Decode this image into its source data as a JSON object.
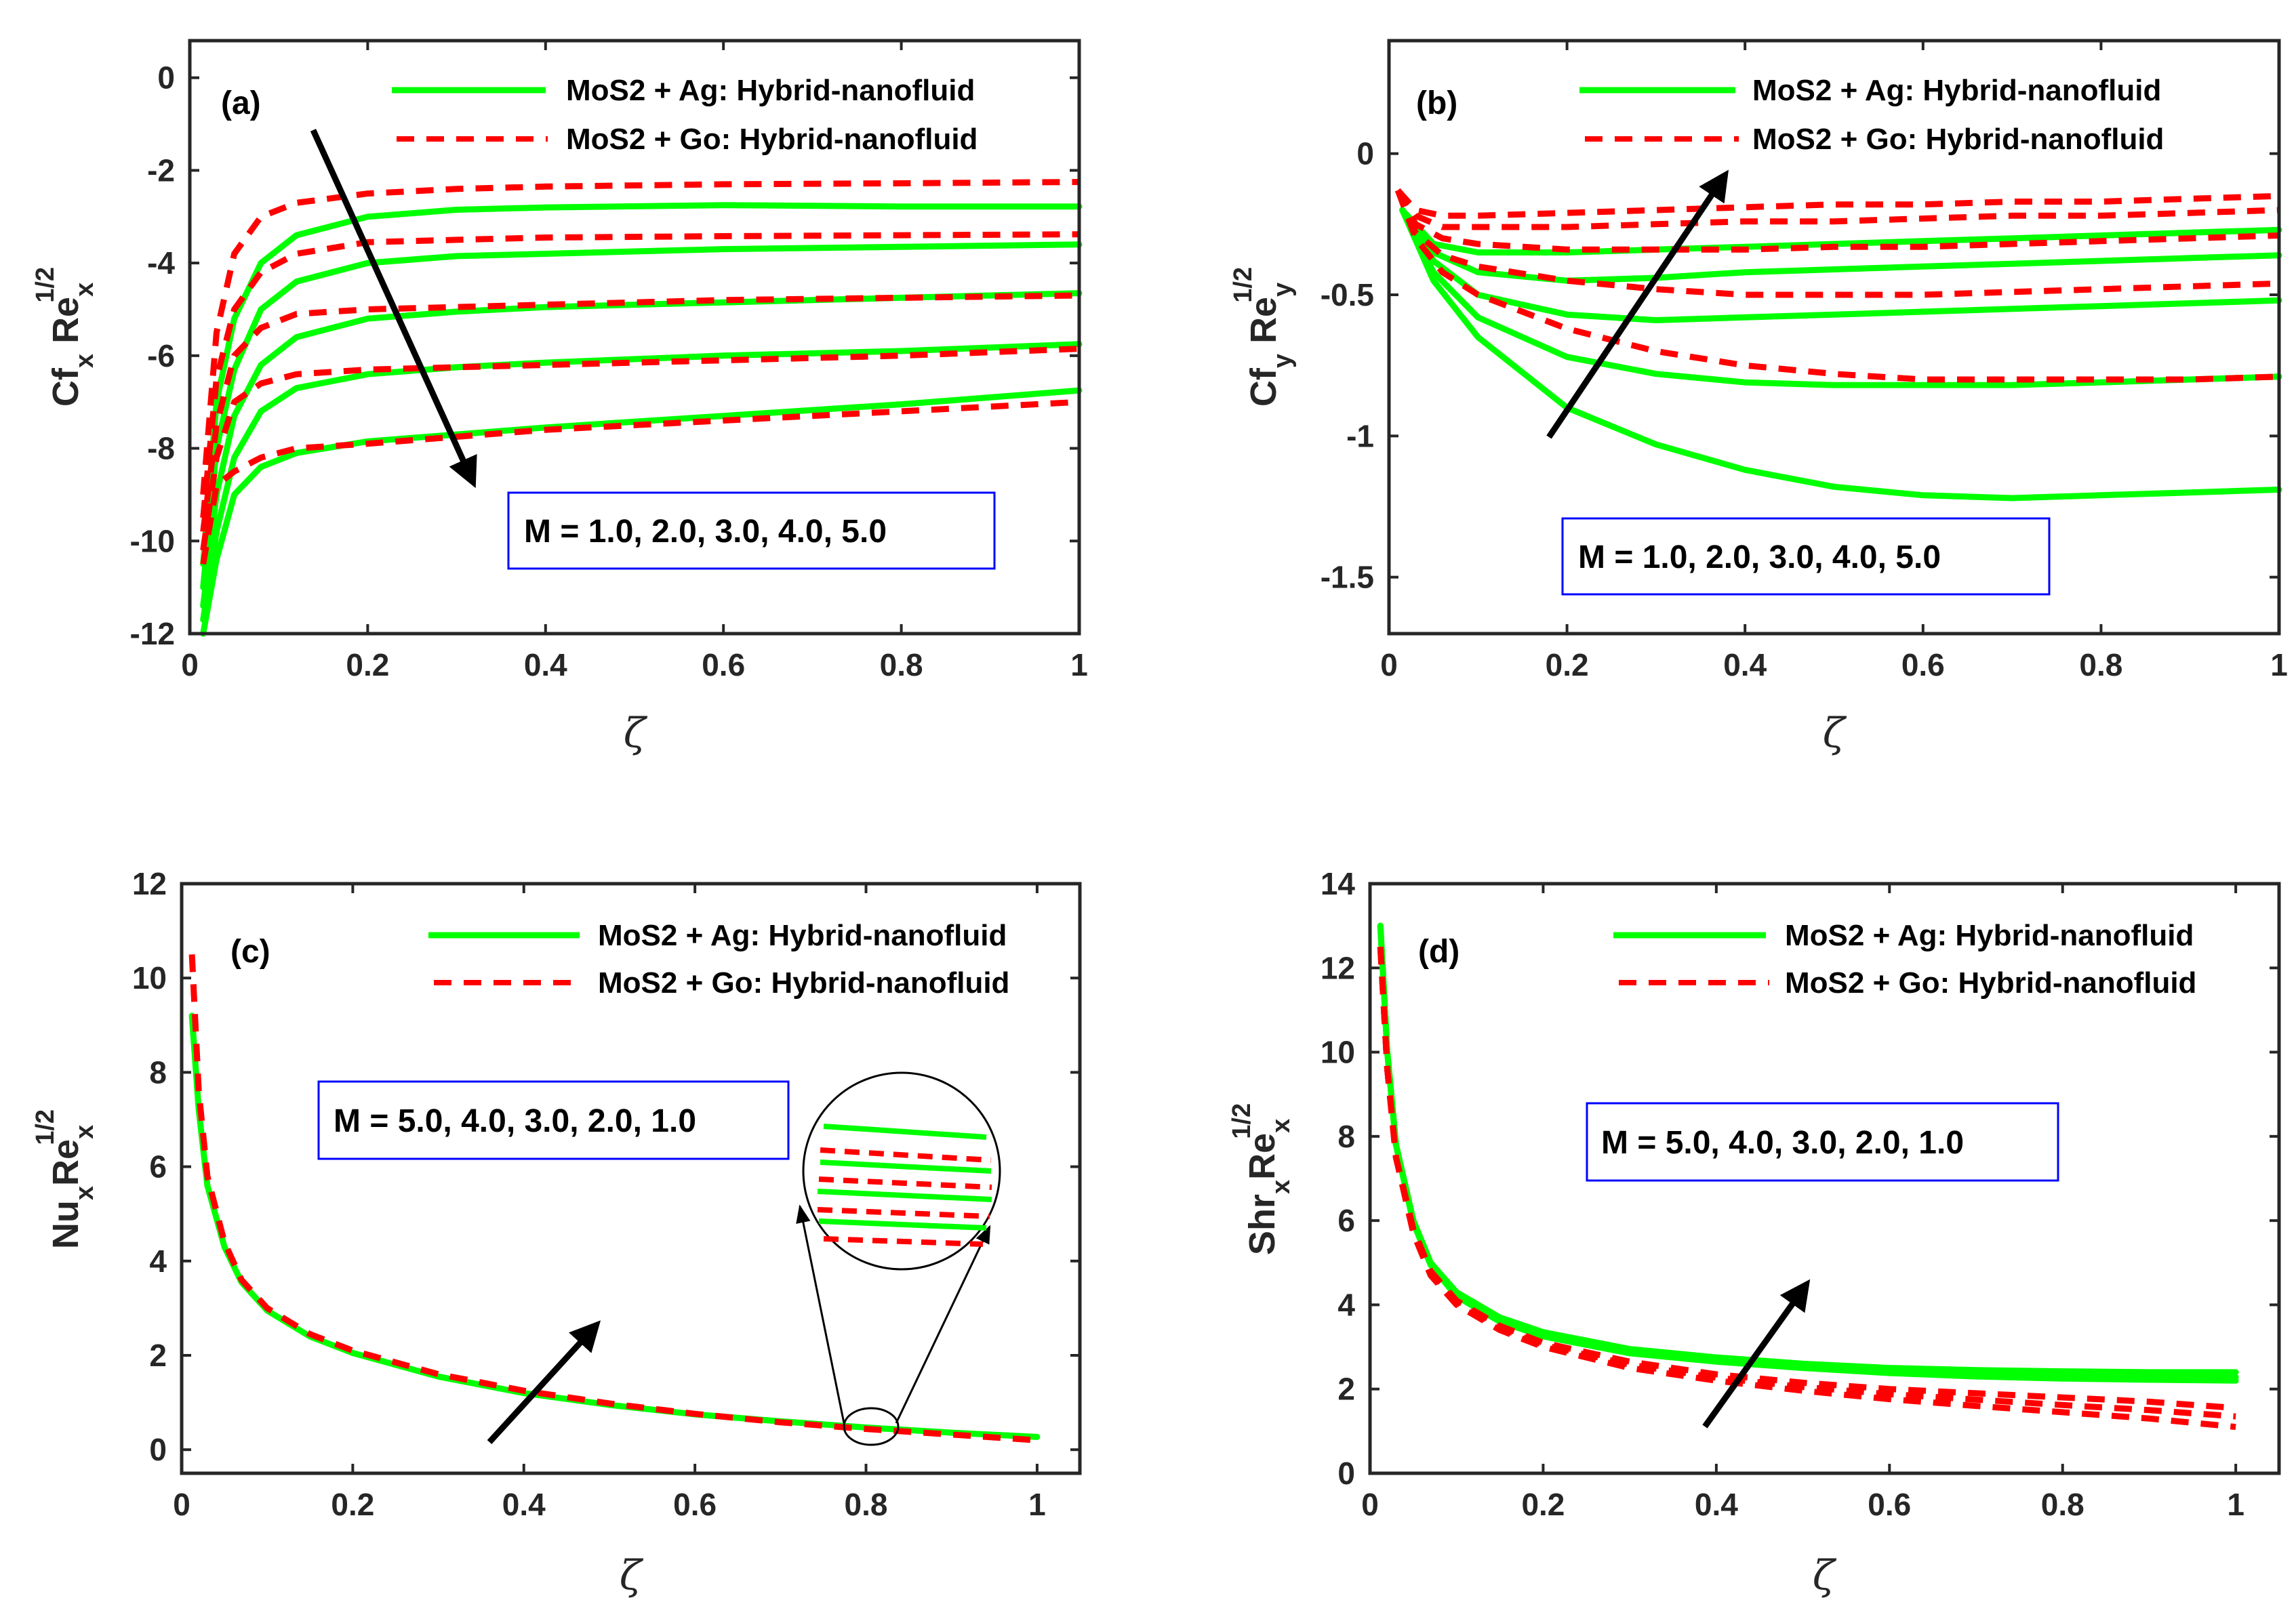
{
  "colors": {
    "ag": "#00ff00",
    "go": "#ff0000",
    "box": "#0000ff",
    "axis": "#262626"
  },
  "chart_data": [
    {
      "id": "a",
      "type": "line",
      "panel_label": "(a)",
      "xlabel": "ζ",
      "ylabel_main": "Cf",
      "ylabel_sub1": "x",
      "ylabel_mid": " Re",
      "ylabel_sub2": "x",
      "ylabel_sup": "1/2",
      "xlim": [
        0,
        1
      ],
      "ylim": [
        -12,
        0.8
      ],
      "xticks": [
        0,
        0.2,
        0.4,
        0.6,
        0.8,
        1
      ],
      "xtick_labels": [
        "0",
        "0.2",
        "0.4",
        "0.6",
        "0.8",
        "1"
      ],
      "yticks": [
        0,
        -2,
        -4,
        -6,
        -8,
        -10,
        -12
      ],
      "ytick_labels": [
        "0",
        "-2",
        "-4",
        "-6",
        "-8",
        "-10",
        "-12"
      ],
      "legend": [
        "MoS2 + Ag: Hybrid-nanofluid",
        "MoS2 + Go: Hybrid-nanofluid"
      ],
      "annotation": "M = 1.0, 2.0, 3.0, 4.0, 5.0",
      "series": [
        {
          "name": "MoS2 + Ag: Hybrid-nanofluid",
          "style": "solid",
          "x": [
            0.015,
            0.03,
            0.05,
            0.08,
            0.12,
            0.2,
            0.3,
            0.4,
            0.6,
            0.8,
            1.0
          ],
          "curves": [
            [
              -10.5,
              -7.0,
              -5.2,
              -4.0,
              -3.4,
              -3.0,
              -2.85,
              -2.8,
              -2.75,
              -2.78,
              -2.78
            ],
            [
              -11.0,
              -8.0,
              -6.3,
              -5.0,
              -4.4,
              -4.0,
              -3.85,
              -3.8,
              -3.7,
              -3.65,
              -3.6
            ],
            [
              -11.4,
              -9.0,
              -7.3,
              -6.2,
              -5.6,
              -5.2,
              -5.05,
              -4.95,
              -4.85,
              -4.75,
              -4.65
            ],
            [
              -11.7,
              -9.8,
              -8.2,
              -7.2,
              -6.7,
              -6.4,
              -6.25,
              -6.15,
              -6.0,
              -5.9,
              -5.75
            ],
            [
              -12.0,
              -10.4,
              -9.0,
              -8.4,
              -8.1,
              -7.85,
              -7.7,
              -7.55,
              -7.3,
              -7.05,
              -6.75
            ]
          ]
        },
        {
          "name": "MoS2 + Go: Hybrid-nanofluid",
          "style": "dashed",
          "x": [
            0.015,
            0.03,
            0.05,
            0.08,
            0.12,
            0.2,
            0.3,
            0.4,
            0.6,
            0.8,
            1.0
          ],
          "curves": [
            [
              -9.0,
              -5.5,
              -3.8,
              -3.0,
              -2.7,
              -2.5,
              -2.4,
              -2.35,
              -2.3,
              -2.28,
              -2.25
            ],
            [
              -9.5,
              -6.5,
              -5.0,
              -4.2,
              -3.8,
              -3.55,
              -3.5,
              -3.45,
              -3.42,
              -3.4,
              -3.38
            ],
            [
              -9.8,
              -7.5,
              -6.0,
              -5.4,
              -5.1,
              -5.0,
              -4.95,
              -4.9,
              -4.8,
              -4.75,
              -4.7
            ],
            [
              -10.2,
              -8.2,
              -7.0,
              -6.6,
              -6.4,
              -6.3,
              -6.25,
              -6.2,
              -6.1,
              -6.0,
              -5.85
            ],
            [
              -10.5,
              -8.8,
              -8.5,
              -8.2,
              -8.0,
              -7.9,
              -7.75,
              -7.6,
              -7.4,
              -7.2,
              -7.0
            ]
          ]
        }
      ]
    },
    {
      "id": "b",
      "type": "line",
      "panel_label": "(b)",
      "xlabel": "ζ",
      "ylabel_main": "Cf",
      "ylabel_sub1": "y",
      "ylabel_mid": " Re",
      "ylabel_sub2": "y",
      "ylabel_sup": "1/2",
      "xlim": [
        0,
        1
      ],
      "ylim": [
        -1.7,
        0.4
      ],
      "xticks": [
        0,
        0.2,
        0.4,
        0.6,
        0.8,
        1
      ],
      "xtick_labels": [
        "0",
        "0.2",
        "0.4",
        "0.6",
        "0.8",
        "1"
      ],
      "yticks": [
        0,
        -0.5,
        -1,
        -1.5
      ],
      "ytick_labels": [
        "0",
        "-0.5",
        "-1",
        "-1.5"
      ],
      "legend": [
        "MoS2 + Ag: Hybrid-nanofluid",
        "MoS2 + Go: Hybrid-nanofluid"
      ],
      "annotation": "M = 1.0, 2.0, 3.0, 4.0, 5.0",
      "series": [
        {
          "name": "MoS2 + Ag: Hybrid-nanofluid",
          "style": "solid",
          "x": [
            0.015,
            0.05,
            0.1,
            0.2,
            0.3,
            0.4,
            0.5,
            0.6,
            0.7,
            0.8,
            0.9,
            1.0
          ],
          "curves": [
            [
              -0.2,
              -0.32,
              -0.35,
              -0.35,
              -0.34,
              -0.33,
              -0.32,
              -0.31,
              -0.3,
              -0.29,
              -0.28,
              -0.27
            ],
            [
              -0.2,
              -0.35,
              -0.42,
              -0.45,
              -0.44,
              -0.42,
              -0.41,
              -0.4,
              -0.39,
              -0.38,
              -0.37,
              -0.36
            ],
            [
              -0.2,
              -0.38,
              -0.5,
              -0.57,
              -0.59,
              -0.58,
              -0.57,
              -0.56,
              -0.55,
              -0.54,
              -0.53,
              -0.52
            ],
            [
              -0.2,
              -0.42,
              -0.58,
              -0.72,
              -0.78,
              -0.81,
              -0.82,
              -0.82,
              -0.82,
              -0.81,
              -0.8,
              -0.79
            ],
            [
              -0.2,
              -0.45,
              -0.65,
              -0.9,
              -1.03,
              -1.12,
              -1.18,
              -1.21,
              -1.22,
              -1.21,
              -1.2,
              -1.19
            ]
          ]
        },
        {
          "name": "MoS2 + Go: Hybrid-nanofluid",
          "style": "dashed",
          "x": [
            0.01,
            0.03,
            0.06,
            0.1,
            0.2,
            0.3,
            0.4,
            0.5,
            0.6,
            0.7,
            0.8,
            0.9,
            1.0
          ],
          "curves": [
            [
              -0.13,
              -0.2,
              -0.22,
              -0.22,
              -0.21,
              -0.2,
              -0.19,
              -0.18,
              -0.18,
              -0.17,
              -0.17,
              -0.16,
              -0.15
            ],
            [
              -0.13,
              -0.22,
              -0.26,
              -0.26,
              -0.26,
              -0.25,
              -0.24,
              -0.24,
              -0.23,
              -0.22,
              -0.22,
              -0.21,
              -0.2
            ],
            [
              -0.13,
              -0.25,
              -0.3,
              -0.32,
              -0.34,
              -0.34,
              -0.34,
              -0.33,
              -0.33,
              -0.32,
              -0.31,
              -0.3,
              -0.29
            ],
            [
              -0.13,
              -0.28,
              -0.36,
              -0.4,
              -0.45,
              -0.48,
              -0.5,
              -0.5,
              -0.5,
              -0.49,
              -0.48,
              -0.47,
              -0.46
            ],
            [
              -0.13,
              -0.3,
              -0.42,
              -0.5,
              -0.62,
              -0.7,
              -0.75,
              -0.78,
              -0.8,
              -0.8,
              -0.8,
              -0.8,
              -0.79
            ]
          ]
        }
      ]
    },
    {
      "id": "c",
      "type": "line",
      "panel_label": "(c)",
      "xlabel": "ζ",
      "ylabel_main": "Nu",
      "ylabel_sub1": "x",
      "ylabel_mid": "Re",
      "ylabel_sub2": "x",
      "ylabel_sup": "1/2",
      "xlim": [
        0,
        1.05
      ],
      "ylim": [
        -0.5,
        12
      ],
      "xticks": [
        0,
        0.2,
        0.4,
        0.6,
        0.8,
        1
      ],
      "xtick_labels": [
        "0",
        "0.2",
        "0.4",
        "0.6",
        "0.8",
        "1"
      ],
      "yticks": [
        0,
        2,
        4,
        6,
        8,
        10,
        12
      ],
      "ytick_labels": [
        "0",
        "2",
        "4",
        "6",
        "8",
        "10",
        "12"
      ],
      "legend": [
        "MoS2 + Ag: Hybrid-nanofluid",
        "MoS2 + Go: Hybrid-nanofluid"
      ],
      "annotation": "M = 5.0, 4.0, 3.0, 2.0, 1.0",
      "series": [
        {
          "name": "MoS2 + Ag: Hybrid-nanofluid",
          "style": "solid",
          "x": [
            0.012,
            0.02,
            0.03,
            0.05,
            0.07,
            0.1,
            0.15,
            0.2,
            0.3,
            0.4,
            0.5,
            0.6,
            0.7,
            0.8,
            0.9,
            1.0
          ],
          "curves": [
            [
              9.2,
              7.2,
              5.6,
              4.3,
              3.55,
              2.95,
              2.4,
              2.05,
              1.55,
              1.2,
              0.95,
              0.75,
              0.6,
              0.47,
              0.36,
              0.27
            ]
          ]
        },
        {
          "name": "MoS2 + Go: Hybrid-nanofluid",
          "style": "dashed",
          "x": [
            0.012,
            0.02,
            0.03,
            0.05,
            0.07,
            0.1,
            0.15,
            0.2,
            0.3,
            0.4,
            0.5,
            0.6,
            0.7,
            0.8,
            0.9,
            1.0
          ],
          "curves": [
            [
              10.5,
              7.6,
              5.8,
              4.4,
              3.6,
              3.0,
              2.45,
              2.1,
              1.6,
              1.25,
              0.98,
              0.76,
              0.58,
              0.44,
              0.32,
              0.2
            ]
          ]
        }
      ]
    },
    {
      "id": "d",
      "type": "line",
      "panel_label": "(d)",
      "xlabel": "ζ",
      "ylabel_main": "Shr",
      "ylabel_sub1": "x",
      "ylabel_mid": "Re",
      "ylabel_sub2": "x",
      "ylabel_sup": "1/2",
      "xlim": [
        0,
        1.05
      ],
      "ylim": [
        0,
        14
      ],
      "xticks": [
        0,
        0.2,
        0.4,
        0.6,
        0.8,
        1
      ],
      "xtick_labels": [
        "0",
        "0.2",
        "0.4",
        "0.6",
        "0.8",
        "1"
      ],
      "yticks": [
        0,
        2,
        4,
        6,
        8,
        10,
        12,
        14
      ],
      "ytick_labels": [
        "0",
        "2",
        "4",
        "6",
        "8",
        "10",
        "12",
        "14"
      ],
      "legend": [
        "MoS2 + Ag: Hybrid-nanofluid",
        "MoS2 + Go: Hybrid-nanofluid"
      ],
      "annotation": "M = 5.0, 4.0, 3.0, 2.0, 1.0",
      "series": [
        {
          "name": "MoS2 + Ag: Hybrid-nanofluid",
          "style": "solid",
          "x": [
            0.012,
            0.02,
            0.03,
            0.05,
            0.07,
            0.1,
            0.15,
            0.2,
            0.3,
            0.4,
            0.5,
            0.6,
            0.7,
            0.8,
            0.9,
            1.0
          ],
          "curves": [
            [
              13.0,
              10.0,
              7.8,
              6.0,
              5.0,
              4.3,
              3.7,
              3.35,
              2.95,
              2.75,
              2.6,
              2.5,
              2.45,
              2.42,
              2.4,
              2.4
            ],
            [
              13.0,
              10.0,
              7.8,
              6.0,
              5.0,
              4.25,
              3.65,
              3.3,
              2.9,
              2.7,
              2.55,
              2.45,
              2.38,
              2.33,
              2.3,
              2.28
            ],
            [
              13.0,
              10.0,
              7.8,
              5.95,
              4.95,
              4.2,
              3.6,
              3.25,
              2.85,
              2.65,
              2.5,
              2.38,
              2.3,
              2.25,
              2.22,
              2.2
            ]
          ]
        },
        {
          "name": "MoS2 + Go: Hybrid-nanofluid",
          "style": "dashed",
          "x": [
            0.012,
            0.02,
            0.03,
            0.05,
            0.07,
            0.1,
            0.15,
            0.2,
            0.3,
            0.4,
            0.5,
            0.6,
            0.7,
            0.8,
            0.9,
            1.0
          ],
          "curves": [
            [
              12.5,
              9.6,
              7.5,
              5.8,
              4.8,
              4.1,
              3.5,
              3.1,
              2.65,
              2.35,
              2.15,
              2.0,
              1.9,
              1.8,
              1.7,
              1.55
            ],
            [
              12.5,
              9.6,
              7.5,
              5.75,
              4.75,
              4.05,
              3.45,
              3.05,
              2.58,
              2.27,
              2.05,
              1.88,
              1.75,
              1.62,
              1.5,
              1.35
            ],
            [
              12.5,
              9.6,
              7.5,
              5.7,
              4.7,
              4.0,
              3.4,
              3.0,
              2.5,
              2.2,
              1.96,
              1.76,
              1.6,
              1.45,
              1.3,
              1.1
            ]
          ]
        }
      ]
    }
  ]
}
